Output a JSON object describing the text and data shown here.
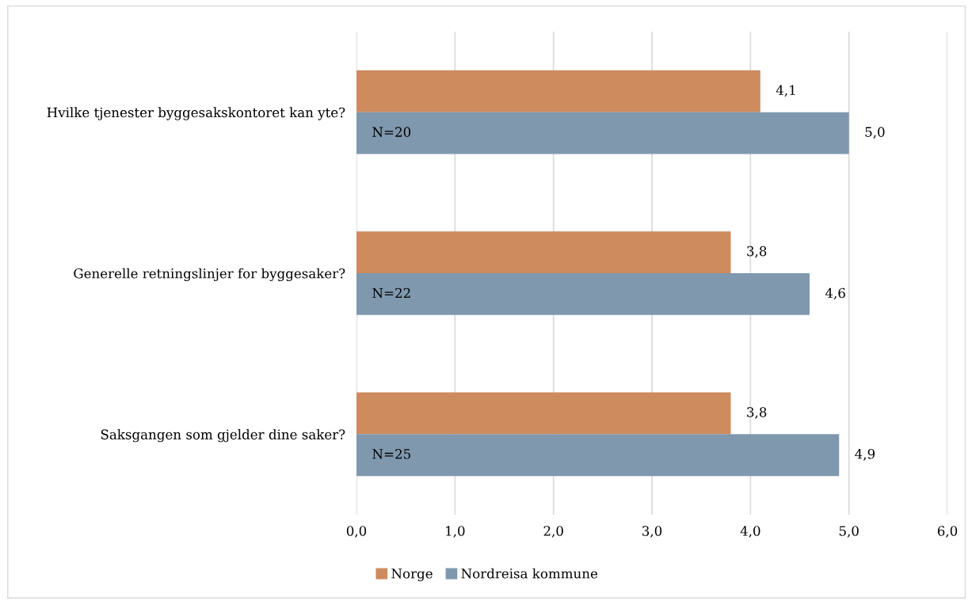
{
  "chart_data": {
    "type": "bar",
    "orientation": "horizontal",
    "categories": [
      "Hvilke tjenester byggesakskontoret kan yte?",
      "Generelle retningslinjer for byggesaker?",
      "Saksgangen som gjelder dine saker?"
    ],
    "series": [
      {
        "name": "Norge",
        "color": "#cd8b5e",
        "values": [
          4.1,
          3.8,
          3.8
        ],
        "value_labels": [
          "4,1",
          "3,8",
          "3,8"
        ]
      },
      {
        "name": "Nordreisa kommune",
        "color": "#7f98ae",
        "values": [
          5.0,
          4.6,
          4.9
        ],
        "value_labels": [
          "5,0",
          "4,6",
          "4,9"
        ]
      }
    ],
    "xlim": [
      0,
      6
    ],
    "xticks": [
      {
        "value": 0,
        "label": "0,0"
      },
      {
        "value": 1,
        "label": "1,0"
      },
      {
        "value": 2,
        "label": "2,0"
      },
      {
        "value": 3,
        "label": "3,0"
      },
      {
        "value": 4,
        "label": "4,0"
      },
      {
        "value": 5,
        "label": "5,0"
      },
      {
        "value": 6,
        "label": "6,0"
      }
    ],
    "annotations": [
      "N=20",
      "N=22",
      "N=25"
    ],
    "grid": "x",
    "legend": "bottom"
  }
}
